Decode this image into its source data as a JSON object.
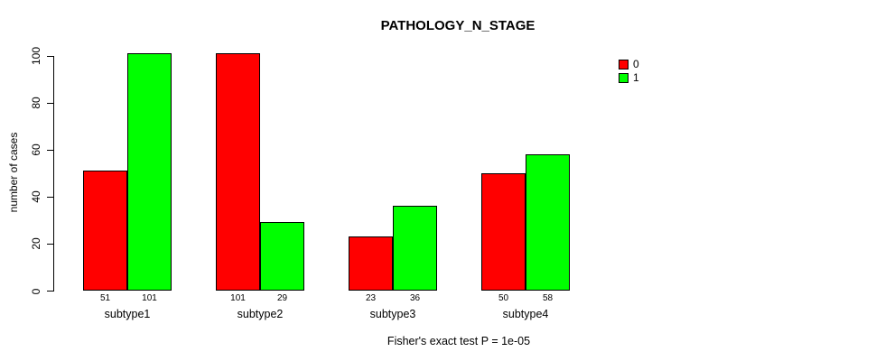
{
  "chart_data": {
    "type": "bar",
    "title": "PATHOLOGY_N_STAGE",
    "categories": [
      "subtype1",
      "subtype2",
      "subtype3",
      "subtype4"
    ],
    "series": [
      {
        "name": "0",
        "color": "#FF0000",
        "values": [
          51,
          101,
          23,
          50
        ]
      },
      {
        "name": "1",
        "color": "#00FF00",
        "values": [
          101,
          29,
          36,
          58
        ]
      }
    ],
    "ylabel": "number of cases",
    "xlabel": "",
    "ylim": [
      0,
      100
    ],
    "yticks": [
      0,
      20,
      40,
      60,
      80,
      100
    ],
    "bar_value_labels": true,
    "grid": false,
    "legend_position": "top-right",
    "annotation": "Fisher's exact test P = 1e-05"
  },
  "legend": {
    "items": [
      {
        "label": "0",
        "color": "#FF0000"
      },
      {
        "label": "1",
        "color": "#00FF00"
      }
    ]
  },
  "colors": {
    "axis": "#000000",
    "background": "#FFFFFF"
  }
}
